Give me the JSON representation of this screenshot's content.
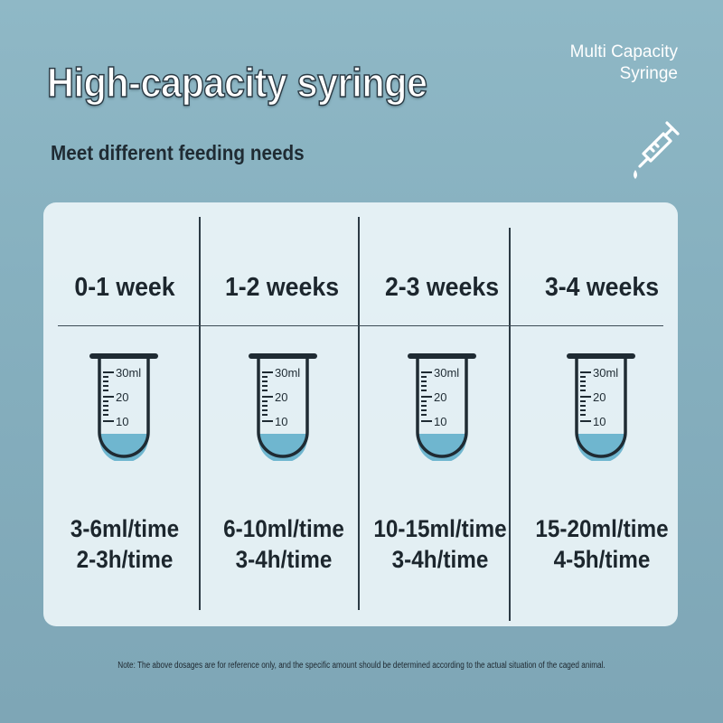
{
  "header": {
    "title": "High-capacity syringe",
    "subtitle": "Meet different feeding needs",
    "brand_line1": "Multi Capacity",
    "brand_line2": "Syringe",
    "brand_icon": "syringe-icon"
  },
  "tube_scale": {
    "mark_30": "30ml",
    "mark_20": "20",
    "mark_10": "10",
    "fill_color": "#6fb6cf"
  },
  "columns": [
    {
      "age": "0-1 week",
      "amount": "3-6ml/time",
      "interval": "2-3h/time"
    },
    {
      "age": "1-2 weeks",
      "amount": "6-10ml/time",
      "interval": "3-4h/time"
    },
    {
      "age": "2-3 weeks",
      "amount": "10-15ml/time",
      "interval": "3-4h/time"
    },
    {
      "age": "3-4 weeks",
      "amount": "15-20ml/time",
      "interval": "4-5h/time"
    }
  ],
  "note": "Note: The above dosages are for reference only, and the specific amount should be determined according to the actual situation of the caged animal."
}
